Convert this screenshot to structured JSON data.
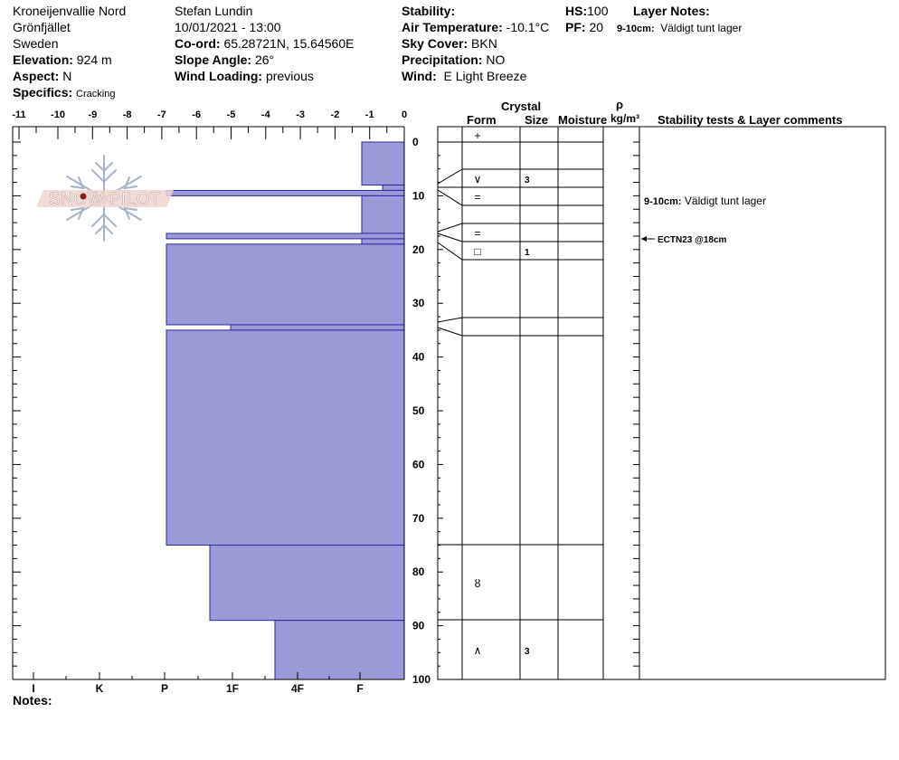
{
  "header": {
    "location": "Kroneijenvallie Nord",
    "area": "Grönfjället",
    "country": "Sweden",
    "elevation_label": "Elevation:",
    "elevation": "924 m",
    "aspect_label": "Aspect:",
    "aspect": "N",
    "specifics_label": "Specifics:",
    "specifics": "Cracking",
    "observer": "Stefan Lundin",
    "datetime": "10/01/2021 - 13:00",
    "coord_label": "Co-ord:",
    "coord": "65.28721N, 15.64560E",
    "slope_label": "Slope Angle:",
    "slope": "26°",
    "wind_loading_label": "Wind Loading:",
    "wind_loading": "previous",
    "stability_label": "Stability:",
    "air_temp_label": "Air Temperature:",
    "air_temp": "-10.1°C",
    "sky_label": "Sky Cover:",
    "sky": "BKN",
    "precip_label": "Precipitation:",
    "precip": "NO",
    "wind_label": "Wind:",
    "wind": "E Light Breeze",
    "hs_label": "HS:",
    "hs": "100",
    "pf_label": "PF:",
    "pf": "20",
    "layer_notes_label": "Layer Notes:",
    "layer_note_depth": "9-10cm:",
    "layer_note_text": "Väldigt tunt lager"
  },
  "logo": {
    "text": "SNOW PILOT"
  },
  "table_headers": {
    "crystal": "Crystal",
    "form": "Form",
    "size": "Size",
    "moisture": "Moisture",
    "rho": "ρ",
    "density_unit": "kg/m³",
    "stability_comments": "Stability tests & Layer comments"
  },
  "footer": {
    "notes_label": "Notes:"
  },
  "chart_data": {
    "type": "snow-profile",
    "temperature_axis": {
      "ticks": [
        -11,
        -10,
        -9,
        -8,
        -7,
        -6,
        -5,
        -4,
        -3,
        -2,
        -1,
        0
      ]
    },
    "depth_axis": {
      "range": [
        0,
        100
      ],
      "ticks": [
        0,
        10,
        20,
        30,
        40,
        50,
        60,
        70,
        80,
        90,
        100
      ]
    },
    "hardness_axis": {
      "labels": [
        "I",
        "K",
        "P",
        "1F",
        "4F",
        "F"
      ]
    },
    "hardness_layers": [
      {
        "top": 0,
        "bottom": 8,
        "hardness": "F"
      },
      {
        "top": 8,
        "bottom": 9,
        "hardness": "F+"
      },
      {
        "top": 9,
        "bottom": 10,
        "hardness": "P"
      },
      {
        "top": 10,
        "bottom": 17,
        "hardness": "F"
      },
      {
        "top": 17,
        "bottom": 18,
        "hardness": "P"
      },
      {
        "top": 18,
        "bottom": 19,
        "hardness": "F"
      },
      {
        "top": 19,
        "bottom": 34,
        "hardness": "P"
      },
      {
        "top": 34,
        "bottom": 35,
        "hardness": "1F"
      },
      {
        "top": 35,
        "bottom": 75,
        "hardness": "P"
      },
      {
        "top": 75,
        "bottom": 89,
        "hardness": "1F-"
      },
      {
        "top": 89,
        "bottom": 100,
        "hardness": "4F+"
      }
    ],
    "layer_boundaries": [
      0,
      8,
      9.5,
      11.5,
      14.5,
      17.5,
      19,
      34.5,
      35.5,
      75,
      89,
      100
    ],
    "crystals": [
      {
        "depth": 1.5,
        "form": "+",
        "size": ""
      },
      {
        "depth": 5,
        "form": "∨",
        "size": "3"
      },
      {
        "depth": 10,
        "form": "=",
        "size": ""
      },
      {
        "depth": 17,
        "form": "=",
        "size": ""
      },
      {
        "depth": 20.5,
        "form": "□",
        "size": "1"
      },
      {
        "depth": 84.5,
        "form": "ȣ",
        "size": ""
      },
      {
        "depth": 97,
        "form": "∧",
        "size": "3"
      }
    ],
    "comments": [
      {
        "depth": 10.5,
        "label": "9-10cm:",
        "text": "Väldigt tunt lager",
        "arrow": false
      },
      {
        "depth": 21,
        "label": "",
        "text": "ECTN23 @18cm",
        "arrow": true
      }
    ]
  }
}
